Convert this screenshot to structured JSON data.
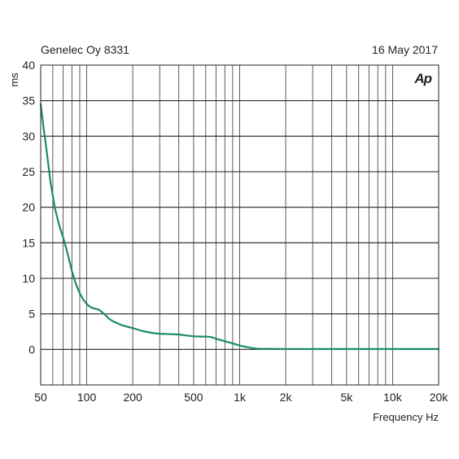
{
  "header": {
    "left": "Genelec Oy 8331",
    "right": "16 May 2017",
    "logo": "Ap"
  },
  "chart_data": {
    "type": "line",
    "title": "",
    "xlabel": "Frequency Hz",
    "ylabel": "ms",
    "xscale": "log",
    "xlim": [
      50,
      20000
    ],
    "ylim": [
      -5,
      40
    ],
    "grid": true,
    "x_ticks": [
      {
        "value": 50,
        "label": "50"
      },
      {
        "value": 100,
        "label": "100"
      },
      {
        "value": 200,
        "label": "200"
      },
      {
        "value": 500,
        "label": "500"
      },
      {
        "value": 1000,
        "label": "1k"
      },
      {
        "value": 2000,
        "label": "2k"
      },
      {
        "value": 5000,
        "label": "5k"
      },
      {
        "value": 10000,
        "label": "10k"
      },
      {
        "value": 20000,
        "label": "20k"
      }
    ],
    "y_ticks": [
      0,
      5,
      10,
      15,
      20,
      25,
      30,
      35,
      40
    ],
    "series": [
      {
        "color": "#1a8a6e",
        "x": [
          50,
          52,
          55,
          58,
          62,
          66,
          70,
          75,
          80,
          85,
          90,
          95,
          100,
          105,
          110,
          115,
          120,
          130,
          140,
          150,
          170,
          200,
          230,
          270,
          300,
          350,
          400,
          450,
          500,
          550,
          600,
          650,
          700,
          800,
          900,
          1000,
          1100,
          1200,
          1300,
          1500,
          2000,
          3000,
          5000,
          10000,
          20000
        ],
        "y": [
          34.5,
          31.5,
          27.5,
          23.5,
          19.8,
          17.5,
          15.8,
          13.5,
          11.0,
          9.2,
          7.9,
          7.0,
          6.4,
          6.0,
          5.8,
          5.7,
          5.6,
          5.0,
          4.3,
          3.9,
          3.4,
          3.0,
          2.6,
          2.3,
          2.2,
          2.15,
          2.1,
          1.95,
          1.85,
          1.8,
          1.8,
          1.75,
          1.5,
          1.15,
          0.85,
          0.55,
          0.35,
          0.2,
          0.1,
          0.08,
          0.06,
          0.05,
          0.05,
          0.05,
          0.05
        ]
      }
    ]
  }
}
